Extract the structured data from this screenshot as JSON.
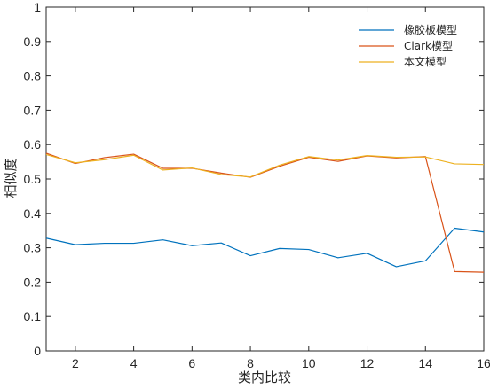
{
  "chart_data": {
    "type": "line",
    "xlabel": "类内比较",
    "ylabel": "相似度",
    "xlim": [
      1,
      16
    ],
    "ylim": [
      0,
      1
    ],
    "xticks": [
      2,
      4,
      6,
      8,
      10,
      12,
      14,
      16
    ],
    "yticks": [
      0,
      0.1,
      0.2,
      0.3,
      0.4,
      0.5,
      0.6,
      0.7,
      0.8,
      0.9,
      1
    ],
    "grid": false,
    "legend_position": "top-right",
    "x": [
      1,
      2,
      3,
      4,
      5,
      6,
      7,
      8,
      9,
      10,
      11,
      12,
      13,
      14,
      15,
      16
    ],
    "series": [
      {
        "name": "橡胶板模型",
        "color": "#0072BD",
        "values": [
          0.328,
          0.309,
          0.313,
          0.313,
          0.323,
          0.306,
          0.314,
          0.277,
          0.298,
          0.295,
          0.271,
          0.284,
          0.245,
          0.262,
          0.357,
          0.346
        ]
      },
      {
        "name": "Clark模型",
        "color": "#D95319",
        "values": [
          0.575,
          0.545,
          0.562,
          0.572,
          0.531,
          0.531,
          0.517,
          0.505,
          0.537,
          0.563,
          0.551,
          0.567,
          0.561,
          0.565,
          0.231,
          0.229
        ]
      },
      {
        "name": "本文模型",
        "color": "#EDB120",
        "values": [
          0.571,
          0.547,
          0.556,
          0.569,
          0.526,
          0.532,
          0.513,
          0.506,
          0.54,
          0.565,
          0.555,
          0.568,
          0.563,
          0.564,
          0.544,
          0.542
        ]
      }
    ]
  }
}
